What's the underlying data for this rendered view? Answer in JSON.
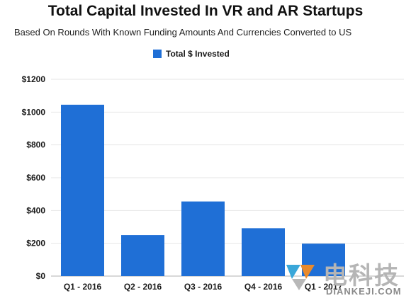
{
  "chart_data": {
    "type": "bar",
    "title": "Total Capital Invested In VR and AR Startups",
    "subtitle": "Based On Rounds With Known Funding Amounts And Currencies Converted to US",
    "categories": [
      "Q1 - 2016",
      "Q2 - 2016",
      "Q3 - 2016",
      "Q4 - 2016",
      "Q1 - 2017"
    ],
    "series": [
      {
        "name": "Total $ Invested",
        "values": [
          1045,
          250,
          455,
          292,
          198
        ],
        "color": "#1f6fd6"
      }
    ],
    "y_ticks": [
      "$0",
      "$200",
      "$400",
      "$600",
      "$800",
      "$1000",
      "$1200"
    ],
    "ylim": [
      0,
      1200
    ],
    "xlabel": "",
    "ylabel": "",
    "grid": true,
    "legend_position": "top-center"
  },
  "watermark": {
    "cn_text": "电科技",
    "latin_text": "DIANKEJI.COM",
    "registered_mark": "®",
    "color": "#b5b5b5",
    "logo_colors": [
      "#3aa7d9",
      "#e98a2c",
      "#b8b8b8"
    ]
  }
}
